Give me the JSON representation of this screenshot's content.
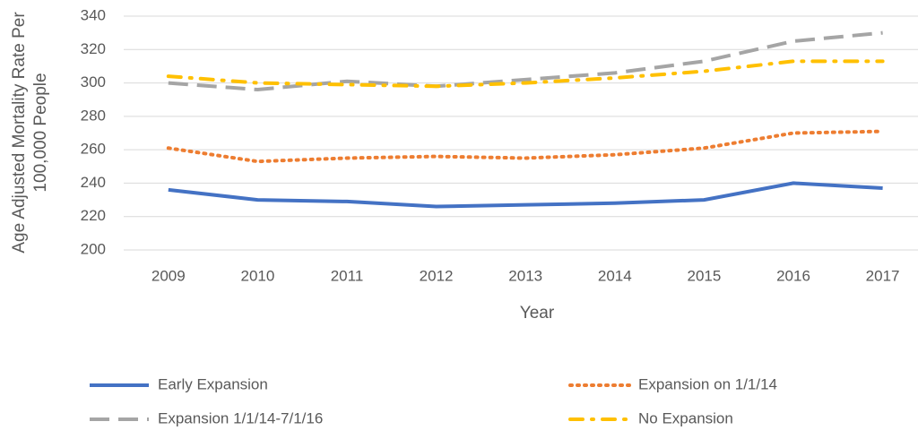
{
  "chart_data": {
    "type": "line",
    "xlabel": "Year",
    "ylabel": [
      "Age Adjusted Mortality Rate Per",
      "100,000 People"
    ],
    "categories": [
      "2009",
      "2010",
      "2011",
      "2012",
      "2013",
      "2014",
      "2015",
      "2016",
      "2017"
    ],
    "series": [
      {
        "name": "Early Expansion",
        "color": "#4472c4",
        "dash": "solid",
        "values": [
          236,
          230,
          229,
          226,
          227,
          228,
          230,
          240,
          237
        ]
      },
      {
        "name": "Expansion on 1/1/14",
        "color": "#ed7d31",
        "dash": "dot",
        "values": [
          261,
          253,
          255,
          256,
          255,
          257,
          261,
          270,
          271
        ]
      },
      {
        "name": "Expansion 1/1/14-7/1/16",
        "color": "#a5a5a5",
        "dash": "longdash",
        "values": [
          300,
          296,
          301,
          298,
          302,
          306,
          313,
          325,
          330
        ]
      },
      {
        "name": "No Expansion",
        "color": "#ffc000",
        "dash": "dashdot",
        "values": [
          304,
          300,
          299,
          298,
          300,
          303,
          307,
          313,
          313
        ]
      }
    ],
    "ylim": [
      200,
      340
    ],
    "yticks": [
      200,
      220,
      240,
      260,
      280,
      300,
      320,
      340
    ],
    "grid": true
  }
}
